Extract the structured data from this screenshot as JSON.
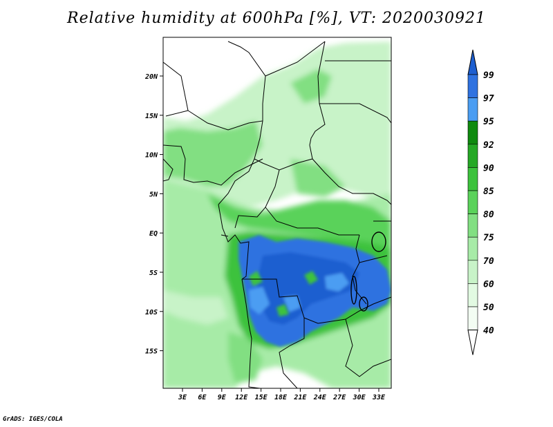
{
  "title": "Relative humidity at 600hPa [%], VT: 2020030921",
  "credit": "GrADS: IGES/COLA",
  "lat_labels": [
    "20N",
    "15N",
    "10N",
    "5N",
    "EQ",
    "5S",
    "10S",
    "15S"
  ],
  "lon_labels": [
    "3E",
    "6E",
    "9E",
    "12E",
    "15E",
    "18E",
    "21E",
    "24E",
    "27E",
    "30E",
    "33E"
  ],
  "colorbar": {
    "labels": [
      "99",
      "97",
      "95",
      "92",
      "90",
      "85",
      "80",
      "75",
      "70",
      "60",
      "50",
      "40"
    ],
    "colors": [
      "#1e5fd0",
      "#2f72e0",
      "#4b9df2",
      "#0f8a0f",
      "#25a825",
      "#3cc23c",
      "#5ad25a",
      "#82df82",
      "#a7eba7",
      "#c8f3c8",
      "#e2fae2",
      "#f3fdf3"
    ]
  }
}
